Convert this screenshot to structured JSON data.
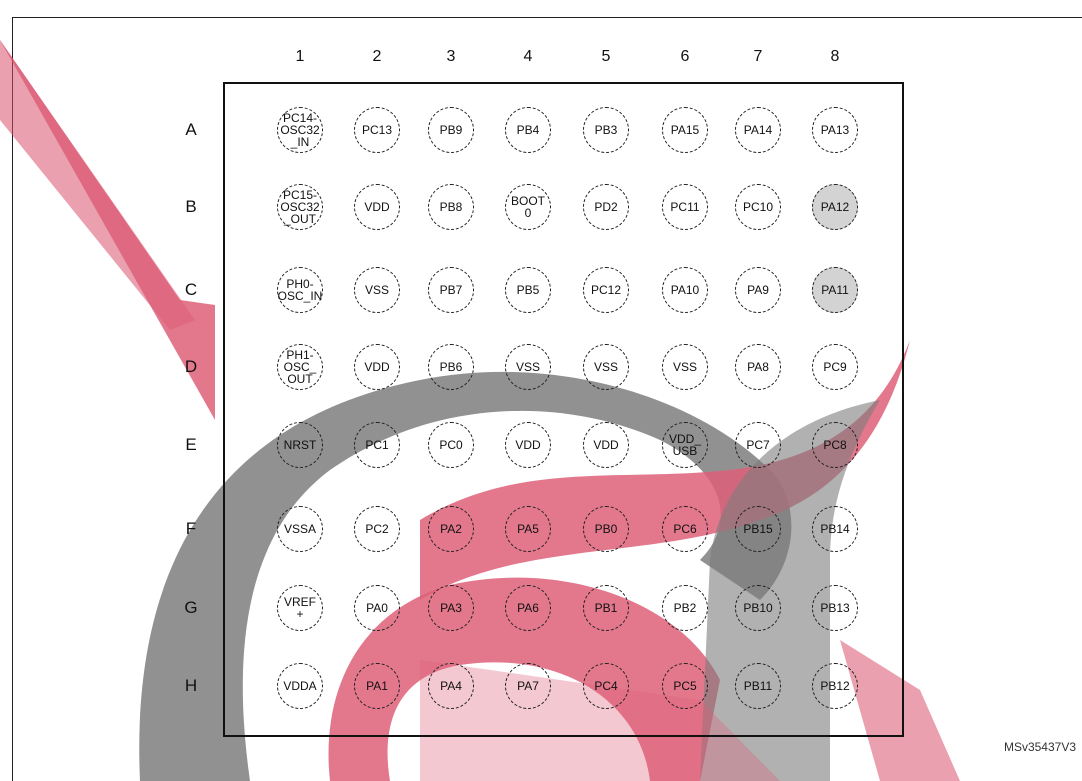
{
  "colors": {
    "shade": "#d3d3d3",
    "watermark_pink": "#d94e6a",
    "watermark_gray": "#6e6e6e"
  },
  "columns": [
    "1",
    "2",
    "3",
    "4",
    "5",
    "6",
    "7",
    "8"
  ],
  "rows": [
    {
      "label": "A",
      "balls": [
        {
          "text": "PC14-\nOSC32\n_IN"
        },
        {
          "text": "PC13"
        },
        {
          "text": "PB9"
        },
        {
          "text": "PB4"
        },
        {
          "text": "PB3"
        },
        {
          "text": "PA15"
        },
        {
          "text": "PA14"
        },
        {
          "text": "PA13"
        }
      ]
    },
    {
      "label": "B",
      "balls": [
        {
          "text": "PC15-\nOSC32\n_OUT"
        },
        {
          "text": "VDD"
        },
        {
          "text": "PB8"
        },
        {
          "text": "BOOT\n0"
        },
        {
          "text": "PD2"
        },
        {
          "text": "PC11"
        },
        {
          "text": "PC10"
        },
        {
          "text": "PA12",
          "shaded": true
        }
      ]
    },
    {
      "label": "C",
      "balls": [
        {
          "text": "PH0-\nOSC_IN"
        },
        {
          "text": "VSS"
        },
        {
          "text": "PB7"
        },
        {
          "text": "PB5"
        },
        {
          "text": "PC12"
        },
        {
          "text": "PA10"
        },
        {
          "text": "PA9"
        },
        {
          "text": "PA11",
          "shaded": true
        }
      ]
    },
    {
      "label": "D",
      "balls": [
        {
          "text": "PH1-\nOSC_\nOUT"
        },
        {
          "text": "VDD"
        },
        {
          "text": "PB6"
        },
        {
          "text": "VSS"
        },
        {
          "text": "VSS"
        },
        {
          "text": "VSS"
        },
        {
          "text": "PA8"
        },
        {
          "text": "PC9"
        }
      ]
    },
    {
      "label": "E",
      "balls": [
        {
          "text": "NRST"
        },
        {
          "text": "PC1"
        },
        {
          "text": "PC0"
        },
        {
          "text": "VDD"
        },
        {
          "text": "VDD"
        },
        {
          "text": "VDD_\nUSB"
        },
        {
          "text": "PC7"
        },
        {
          "text": "PC8"
        }
      ]
    },
    {
      "label": "F",
      "balls": [
        {
          "text": "VSSA"
        },
        {
          "text": "PC2"
        },
        {
          "text": "PA2"
        },
        {
          "text": "PA5"
        },
        {
          "text": "PB0"
        },
        {
          "text": "PC6"
        },
        {
          "text": "PB15"
        },
        {
          "text": "PB14"
        }
      ]
    },
    {
      "label": "G",
      "balls": [
        {
          "text": "VREF\n+"
        },
        {
          "text": "PA0"
        },
        {
          "text": "PA3"
        },
        {
          "text": "PA6"
        },
        {
          "text": "PB1"
        },
        {
          "text": "PB2"
        },
        {
          "text": "PB10"
        },
        {
          "text": "PB13"
        }
      ]
    },
    {
      "label": "H",
      "balls": [
        {
          "text": "VDDA"
        },
        {
          "text": "PA1"
        },
        {
          "text": "PA4"
        },
        {
          "text": "PA7"
        },
        {
          "text": "PC4"
        },
        {
          "text": "PC5"
        },
        {
          "text": "PB11"
        },
        {
          "text": "PB12"
        }
      ]
    }
  ],
  "reference": "MSv35437V3"
}
